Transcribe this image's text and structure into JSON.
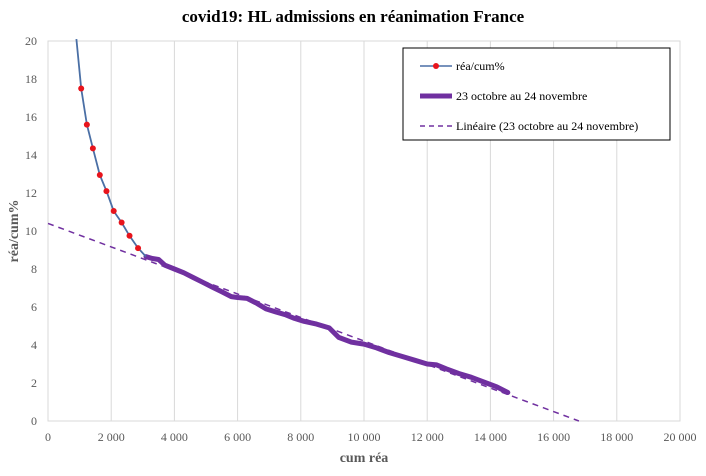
{
  "chart_data": {
    "type": "line",
    "title": "covid19: HL admissions en réanimation France",
    "xlabel": "cum réa",
    "ylabel": "réa/cum%",
    "xlim": [
      0,
      20000
    ],
    "ylim": [
      0,
      20
    ],
    "x_ticks": [
      0,
      2000,
      4000,
      6000,
      8000,
      10000,
      12000,
      14000,
      16000,
      18000,
      20000
    ],
    "x_tick_labels": [
      "0",
      "2 000",
      "4 000",
      "6 000",
      "8 000",
      "10 000",
      "12 000",
      "14 000",
      "16 000",
      "18 000",
      "20 000"
    ],
    "y_ticks": [
      0,
      2,
      4,
      6,
      8,
      10,
      12,
      14,
      16,
      18,
      20
    ],
    "y_tick_labels": [
      "0",
      "2",
      "4",
      "6",
      "8",
      "10",
      "12",
      "14",
      "16",
      "18",
      "20"
    ],
    "grid": "vertical",
    "legend_position": "top-right",
    "colors": {
      "series1": "#4a6fa5",
      "marker": "#e8141c",
      "series2": "#7030a0",
      "trend": "#7030a0"
    },
    "series": [
      {
        "name": "réa/cum%",
        "style": "line-markers",
        "x": [
          900,
          1050,
          1230,
          1420,
          1640,
          1850,
          2080,
          2330,
          2580,
          2850,
          3100
        ],
        "y": [
          20.1,
          17.5,
          15.6,
          14.35,
          12.95,
          12.1,
          11.05,
          10.45,
          9.75,
          9.1,
          8.65
        ],
        "marker_x": [
          1050,
          1230,
          1420,
          1640,
          1850,
          2080,
          2330,
          2580,
          2850
        ],
        "marker_y": [
          17.5,
          15.6,
          14.35,
          12.95,
          12.1,
          11.05,
          10.45,
          9.75,
          9.1
        ]
      },
      {
        "name": "23 octobre au 24 novembre",
        "style": "thick-line",
        "x": [
          3100,
          3300,
          3500,
          3700,
          4000,
          4300,
          4600,
          4900,
          5200,
          5500,
          5800,
          6000,
          6300,
          6600,
          6900,
          7200,
          7500,
          7800,
          8100,
          8500,
          8900,
          9200,
          9600,
          10000,
          10400,
          10800,
          11200,
          11600,
          12000,
          12300,
          12600,
          13000,
          13400,
          13800,
          14200,
          14550
        ],
        "y": [
          8.65,
          8.55,
          8.5,
          8.2,
          8.0,
          7.8,
          7.55,
          7.3,
          7.05,
          6.8,
          6.55,
          6.5,
          6.45,
          6.2,
          5.9,
          5.75,
          5.6,
          5.4,
          5.25,
          5.1,
          4.9,
          4.4,
          4.15,
          4.05,
          3.85,
          3.6,
          3.4,
          3.2,
          3.0,
          2.95,
          2.75,
          2.5,
          2.3,
          2.05,
          1.8,
          1.5
        ]
      },
      {
        "name": "Linéaire (23 octobre au 24 novembre)",
        "style": "dashed",
        "x": [
          0,
          16800
        ],
        "y": [
          10.4,
          0
        ]
      }
    ]
  }
}
